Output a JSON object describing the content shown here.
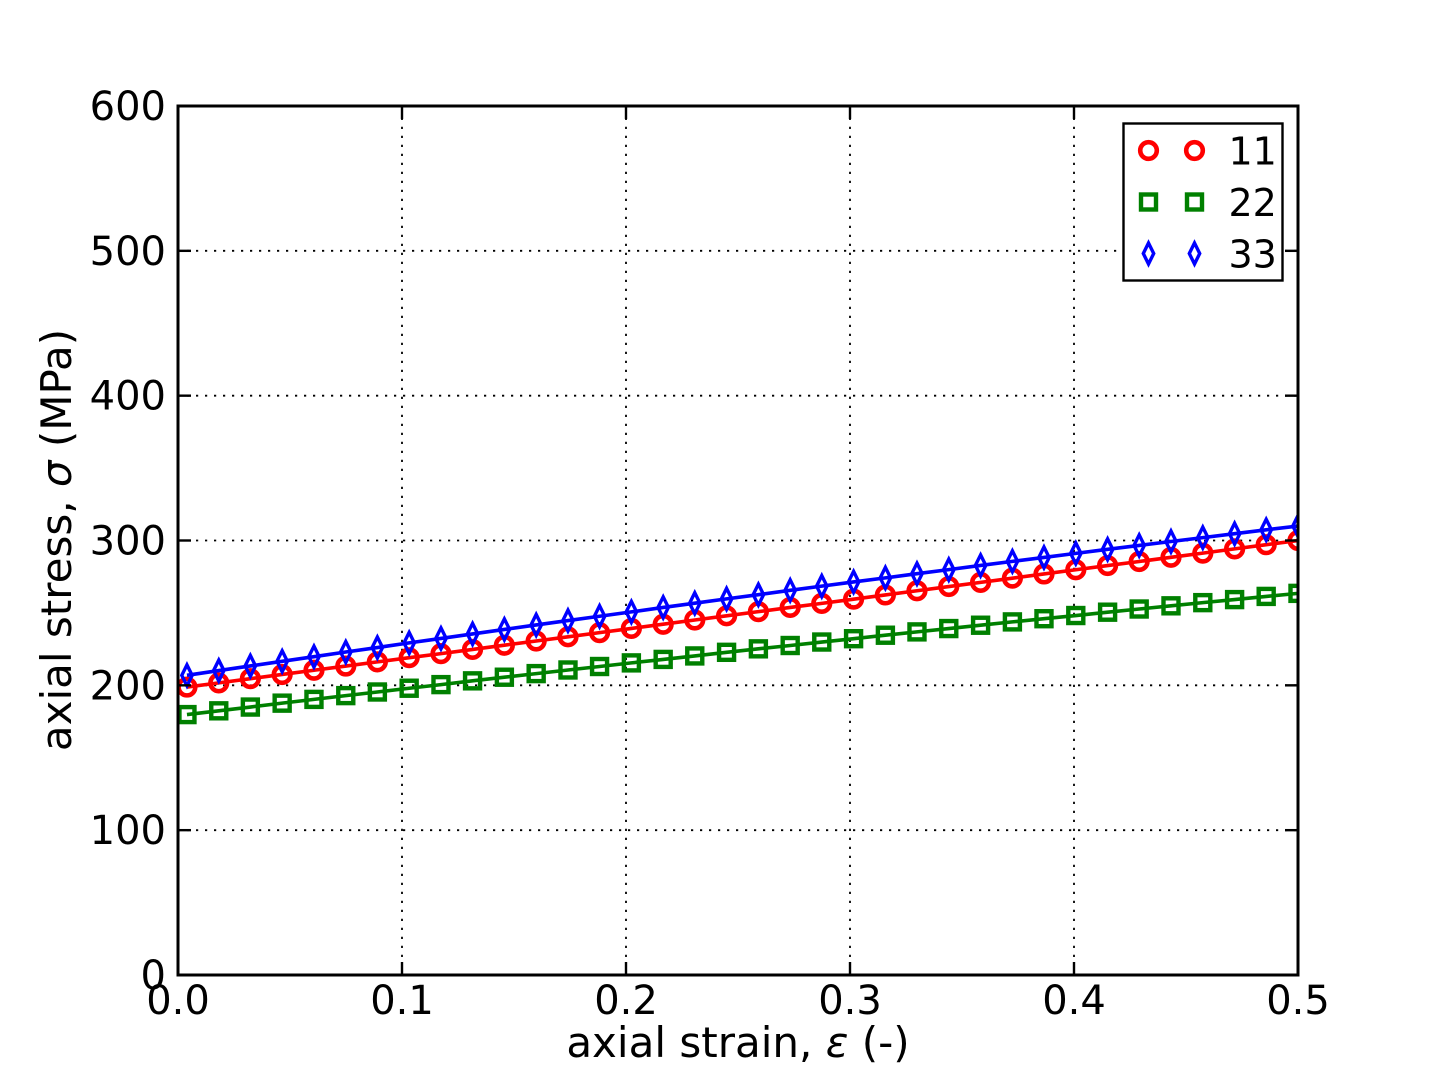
{
  "figure": {
    "background": "#ffffff",
    "text_color": "#000000",
    "grid_color": "#000000",
    "spine_color": "#000000"
  },
  "chart_data": {
    "type": "line",
    "title": "",
    "xlabel": {
      "prefix": "axial strain, ",
      "symbol": "ε",
      "suffix": " (-)"
    },
    "ylabel": {
      "prefix": "axial stress, ",
      "symbol": "σ",
      "suffix": " (MPa)"
    },
    "xlim": [
      0,
      0.5
    ],
    "ylim": [
      0,
      600
    ],
    "grid": true,
    "xticks": {
      "values": [
        0,
        0.1,
        0.2,
        0.3,
        0.4,
        0.5
      ],
      "labels": [
        "0.0",
        "0.1",
        "0.2",
        "0.3",
        "0.4",
        "0.5"
      ]
    },
    "yticks": {
      "values": [
        0,
        100,
        200,
        300,
        400,
        500,
        600
      ],
      "labels": [
        "0",
        "100",
        "200",
        "300",
        "400",
        "500",
        "600"
      ]
    },
    "legend": {
      "position": "upper-right",
      "numpoints": 2,
      "labels": [
        "11",
        "22",
        "33"
      ]
    },
    "x": [
      0.004,
      0.0182,
      0.0323,
      0.0465,
      0.0607,
      0.0749,
      0.089,
      0.1032,
      0.1174,
      0.1315,
      0.1457,
      0.1599,
      0.1741,
      0.1882,
      0.2024,
      0.2166,
      0.2307,
      0.2449,
      0.2591,
      0.2733,
      0.2874,
      0.3016,
      0.3158,
      0.3299,
      0.3441,
      0.3583,
      0.3725,
      0.3866,
      0.4008,
      0.415,
      0.4291,
      0.4433,
      0.4575,
      0.4717,
      0.4858,
      0.5
    ],
    "series": [
      {
        "name": "11",
        "marker": "circle",
        "color": "#ff0000",
        "values": [
          198.8,
          201.7,
          204.6,
          207.5,
          210.4,
          213.3,
          216.2,
          219.1,
          221.9,
          224.8,
          227.7,
          230.6,
          233.5,
          236.4,
          239.3,
          242.2,
          245.1,
          248.0,
          250.9,
          253.8,
          256.6,
          259.5,
          262.4,
          265.3,
          268.2,
          271.1,
          274.0,
          276.9,
          279.8,
          282.7,
          285.5,
          288.4,
          291.3,
          294.2,
          297.1,
          300.0
        ]
      },
      {
        "name": "22",
        "marker": "square",
        "color": "#008000",
        "values": [
          179.8,
          182.4,
          185.0,
          187.7,
          190.3,
          192.9,
          195.4,
          198.0,
          200.5,
          203.1,
          205.6,
          208.1,
          210.6,
          213.0,
          215.5,
          217.9,
          220.3,
          222.8,
          225.2,
          227.5,
          229.9,
          232.2,
          234.6,
          236.9,
          239.2,
          241.5,
          243.8,
          246.0,
          248.2,
          250.5,
          252.7,
          254.9,
          257.1,
          259.2,
          261.4,
          263.5
        ]
      },
      {
        "name": "33",
        "marker": "diamond",
        "color": "#0000ff",
        "values": [
          206.9,
          210.2,
          213.4,
          216.6,
          219.8,
          223.0,
          226.1,
          229.3,
          232.4,
          235.5,
          238.6,
          241.7,
          244.7,
          247.7,
          250.7,
          253.8,
          256.7,
          259.7,
          262.6,
          265.6,
          268.5,
          271.4,
          274.2,
          277.1,
          279.9,
          282.8,
          285.6,
          288.3,
          291.1,
          293.9,
          296.6,
          299.3,
          302.0,
          304.7,
          307.4,
          310.0
        ]
      }
    ]
  }
}
